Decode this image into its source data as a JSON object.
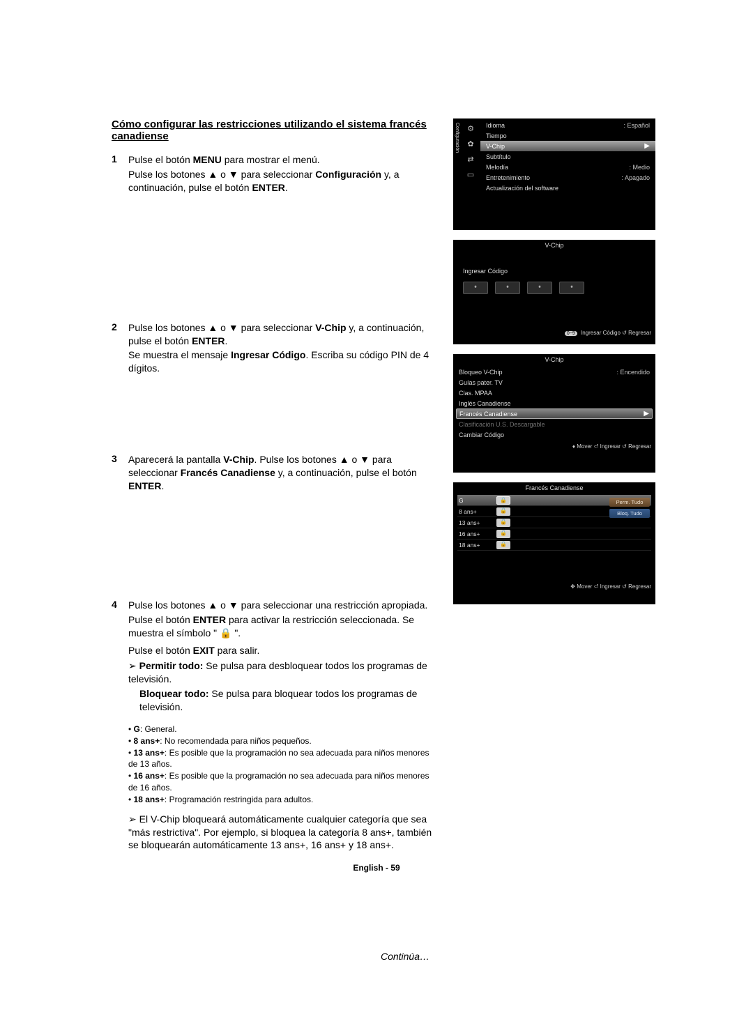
{
  "title": "Cómo configurar las restricciones utilizando el sistema francés canadiense",
  "steps": {
    "s1": {
      "num": "1",
      "l1a": "Pulse el botón ",
      "l1b": "MENU",
      "l1c": " para mostrar el menú.",
      "l2a": "Pulse los botones ▲ o ▼ para seleccionar ",
      "l2b": "Configuración",
      "l2c": " y, a continuación, pulse el botón ",
      "l2d": "ENTER",
      "l2e": "."
    },
    "s2": {
      "num": "2",
      "l1a": "Pulse los botones ▲ o ▼ para seleccionar ",
      "l1b": "V-Chip",
      "l1c": " y, a continuación, pulse el botón ",
      "l1d": "ENTER",
      "l1e": ".",
      "l2a": "Se muestra el mensaje ",
      "l2b": "Ingresar Código",
      "l2c": ". Escriba su código PIN de 4 dígitos."
    },
    "s3": {
      "num": "3",
      "l1a": "Aparecerá la pantalla ",
      "l1b": "V-Chip",
      "l1c": ". Pulse los botones ▲ o ▼ para seleccionar ",
      "l2a": "Francés Canadiense",
      "l2c": " y, a continuación, pulse el botón ",
      "l2d": "ENTER",
      "l2e": "."
    },
    "s4": {
      "num": "4",
      "l1": "Pulse los botones ▲ o ▼ para seleccionar una restricción apropiada.",
      "l2a": "Pulse el botón ",
      "l2b": "ENTER",
      "l2c": " para activar la restricción seleccionada. Se muestra el símbolo \" 🔒 \".",
      "l3a": "Pulse el botón ",
      "l3b": "EXIT",
      "l3c": " para salir.",
      "a1a": "Permitir todo:",
      "a1b": " Se pulsa para desbloquear todos los programas de televisión.",
      "a2a": "Bloquear todo:",
      "a2b": " Se pulsa para bloquear todos los programas de televisión."
    }
  },
  "notes": {
    "n1a": "G",
    "n1b": ": General.",
    "n2a": "8 ans+",
    "n2b": ": No recomendada para niños pequeños.",
    "n3a": "13 ans+",
    "n3b": ": Es posible que la programación no sea adecuada para niños menores de 13 años.",
    "n4a": "16 ans+",
    "n4b": ": Es posible que la programación no sea adecuada para niños menores de 16 años.",
    "n5a": "18 ans+",
    "n5b": ": Programación restringida para adultos."
  },
  "final_note": "El V-Chip bloqueará automáticamente cualquier categoría que sea \"más restrictiva\". Por ejemplo, si bloquea la categoría 8 ans+, también se bloquearán automáticamente 13 ans+, 16 ans+ y 18 ans+.",
  "continues": "Continúa…",
  "footer": "English - 59",
  "tv1": {
    "sidelabel": "Configuración",
    "items": [
      {
        "label": "Idioma",
        "value": ": Español"
      },
      {
        "label": "Tiempo",
        "value": ""
      },
      {
        "label": "V-Chip",
        "value": "",
        "hl": true,
        "chev": "▶"
      },
      {
        "label": "Subtítulo",
        "value": ""
      },
      {
        "label": "Melodía",
        "value": ": Medio"
      },
      {
        "label": "Entretenimiento",
        "value": ": Apagado"
      },
      {
        "label": "Actualización del software",
        "value": ""
      }
    ]
  },
  "tv2": {
    "title": "V-Chip",
    "msg": "Ingresar Código",
    "pin": [
      "*",
      "*",
      "*",
      "*"
    ],
    "foot_pill": "0~9",
    "foot": " Ingresar Código    ↺ Regresar"
  },
  "tv3": {
    "title": "V-Chip",
    "items": [
      {
        "label": "Bloqueo V-Chip",
        "value": ": Encendido"
      },
      {
        "label": "Guías pater. TV",
        "value": ""
      },
      {
        "label": "Clas. MPAA",
        "value": ""
      },
      {
        "label": "Inglés Canadiense",
        "value": ""
      },
      {
        "label": "Francés Canadiense",
        "value": "",
        "sel": true,
        "chev": "▶"
      },
      {
        "label": "Clasificación U.S. Descargable",
        "value": "",
        "dim": true
      },
      {
        "label": "Cambiar Código",
        "value": ""
      }
    ],
    "foot": "♦ Mover      ⏎ Ingresar   ↺ Regresar"
  },
  "tv4": {
    "title": "Francés Canadiense",
    "ratings": [
      {
        "label": "G",
        "sel": true
      },
      {
        "label": "8 ans+"
      },
      {
        "label": "13 ans+"
      },
      {
        "label": "16 ans+"
      },
      {
        "label": "18 ans+"
      }
    ],
    "perm": "Perm. Tudo",
    "bloq": "Bloq. Tudo",
    "foot": "✥ Mover      ⏎ Ingresar   ↺ Regresar"
  }
}
